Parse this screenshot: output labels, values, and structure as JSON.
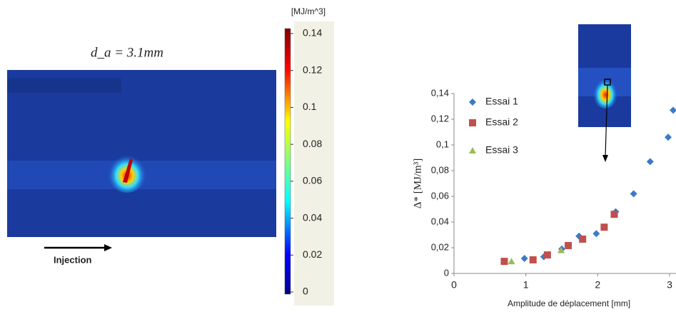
{
  "image_panel": {
    "formula": "d_a = 3.1mm",
    "arrow_label": "Injection"
  },
  "colorbar": {
    "unit": "[MJ/m^3]",
    "ylim": [
      0,
      0.14
    ],
    "yticks": [
      0,
      0.02,
      0.04,
      0.06,
      0.08,
      0.1,
      0.12,
      0.14
    ]
  },
  "chart_data": {
    "type": "scatter",
    "x_label": "Amplitude de déplacement [mm]",
    "y_label": "Δ* [MJ/m³]",
    "xlim": [
      0,
      3.09
    ],
    "ylim": [
      0,
      0.14
    ],
    "xticks": [
      0,
      1,
      2,
      3
    ],
    "yticks": [
      0,
      {
        "value": 0.02,
        "label": "0,02"
      },
      {
        "value": 0.04,
        "label": "0,04"
      },
      {
        "value": 0.06,
        "label": "0,06"
      },
      {
        "value": 0.08,
        "label": "0,08"
      },
      {
        "value": 0.1,
        "label": "0,1"
      },
      {
        "value": 0.12,
        "label": "0,12"
      },
      {
        "value": 0.14,
        "label": "0,14"
      }
    ],
    "legend": "top-left",
    "series": [
      {
        "name": "Essai 1",
        "color": "#3a7bc8",
        "marker": "diamond",
        "x": [
          0.98,
          1.25,
          1.5,
          1.74,
          1.98,
          2.25,
          2.5,
          2.73,
          2.98,
          3.05
        ],
        "values": [
          0.0117,
          0.013,
          0.019,
          0.029,
          0.031,
          0.048,
          0.062,
          0.087,
          0.106,
          0.127
        ]
      },
      {
        "name": "Essai 2",
        "color": "#c0504d",
        "marker": "square",
        "x": [
          0.7,
          1.1,
          1.3,
          1.59,
          1.79,
          2.09,
          2.23
        ],
        "values": [
          0.0094,
          0.0106,
          0.0144,
          0.0217,
          0.0267,
          0.036,
          0.046
        ]
      },
      {
        "name": "Essai 3",
        "color": "#9bbb59",
        "marker": "triangle",
        "x": [
          0.8,
          1.49
        ],
        "values": [
          0.0094,
          0.018
        ]
      }
    ]
  }
}
